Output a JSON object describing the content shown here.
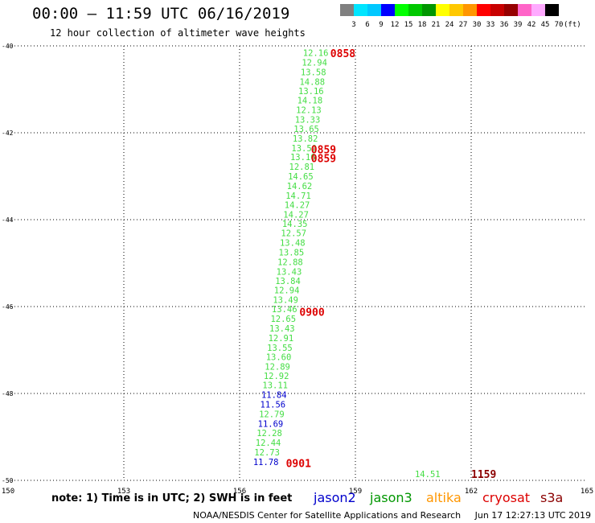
{
  "header": {
    "title": "00:00 – 11:59 UTC 06/16/2019",
    "subtitle": "12 hour collection of altimeter wave heights"
  },
  "legend": {
    "values": [
      "3",
      "6",
      "9",
      "12",
      "15",
      "18",
      "21",
      "24",
      "27",
      "30",
      "33",
      "36",
      "39",
      "42",
      "45",
      "70"
    ],
    "colors": [
      "#808080",
      "#00e5ff",
      "#00c8ff",
      "#0000ff",
      "#00ff00",
      "#00c800",
      "#009600",
      "#ffff00",
      "#ffc800",
      "#ff9600",
      "#ff0000",
      "#c80000",
      "#960000",
      "#ff64c8",
      "#ffaaff",
      "#000000"
    ],
    "unit": "(ft)"
  },
  "footer": {
    "note": "note:  1) Time is in UTC;  2) SWH is in feet",
    "satellites": [
      {
        "name": "jason2",
        "color": "#0000cc"
      },
      {
        "name": "jason3",
        "color": "#009600"
      },
      {
        "name": "altika",
        "color": "#ff9600"
      },
      {
        "name": "cryosat",
        "color": "#dd0000"
      },
      {
        "name": "s3a",
        "color": "#8b0000"
      }
    ],
    "credit": "NOAA/NESDIS Center for Satellite Applications and Research     Jun 17 12:27:13 UTC 2019"
  },
  "chart_data": {
    "type": "scatter",
    "xlim": [
      150,
      165
    ],
    "ylim": [
      -50,
      -40
    ],
    "x_ticks": [
      "150",
      "153",
      "156",
      "159",
      "162",
      "165"
    ],
    "y_ticks": [
      "-40",
      "-42",
      "-44",
      "-46",
      "-48",
      "-50"
    ],
    "grid": true,
    "points": [
      {
        "x": 158.3,
        "y": -40.16,
        "label": "12.16",
        "color": "#44dd44"
      },
      {
        "x": 158.27,
        "y": -40.38,
        "label": "12.94",
        "color": "#44dd44"
      },
      {
        "x": 158.24,
        "y": -40.6,
        "label": "13.58",
        "color": "#44dd44"
      },
      {
        "x": 158.21,
        "y": -40.82,
        "label": "14.88",
        "color": "#44dd44"
      },
      {
        "x": 158.18,
        "y": -41.04,
        "label": "13.16",
        "color": "#44dd44"
      },
      {
        "x": 158.15,
        "y": -41.25,
        "label": "14.18",
        "color": "#44dd44"
      },
      {
        "x": 158.12,
        "y": -41.47,
        "label": "12.13",
        "color": "#44dd44"
      },
      {
        "x": 158.09,
        "y": -41.69,
        "label": "13.33",
        "color": "#44dd44"
      },
      {
        "x": 158.06,
        "y": -41.91,
        "label": "13.65",
        "color": "#44dd44"
      },
      {
        "x": 158.03,
        "y": -42.13,
        "label": "13.82",
        "color": "#44dd44"
      },
      {
        "x": 158.0,
        "y": -42.35,
        "label": "13.50",
        "color": "#44dd44"
      },
      {
        "x": 157.97,
        "y": -42.56,
        "label": "13.16",
        "color": "#44dd44"
      },
      {
        "x": 157.94,
        "y": -42.78,
        "label": "12.81",
        "color": "#44dd44"
      },
      {
        "x": 157.91,
        "y": -43.0,
        "label": "14.65",
        "color": "#44dd44"
      },
      {
        "x": 157.88,
        "y": -43.22,
        "label": "14.62",
        "color": "#44dd44"
      },
      {
        "x": 157.85,
        "y": -43.44,
        "label": "14.71",
        "color": "#44dd44"
      },
      {
        "x": 157.82,
        "y": -43.66,
        "label": "14.27",
        "color": "#44dd44"
      },
      {
        "x": 157.79,
        "y": -43.88,
        "label": "14.27",
        "color": "#44dd44"
      },
      {
        "x": 157.76,
        "y": -44.09,
        "label": "14.35",
        "color": "#44dd44"
      },
      {
        "x": 157.73,
        "y": -44.31,
        "label": "12.57",
        "color": "#44dd44"
      },
      {
        "x": 157.7,
        "y": -44.53,
        "label": "13.48",
        "color": "#44dd44"
      },
      {
        "x": 157.67,
        "y": -44.75,
        "label": "13.85",
        "color": "#44dd44"
      },
      {
        "x": 157.64,
        "y": -44.97,
        "label": "12.88",
        "color": "#44dd44"
      },
      {
        "x": 157.61,
        "y": -45.19,
        "label": "13.43",
        "color": "#44dd44"
      },
      {
        "x": 157.58,
        "y": -45.41,
        "label": "13.84",
        "color": "#44dd44"
      },
      {
        "x": 157.55,
        "y": -45.62,
        "label": "12.94",
        "color": "#44dd44"
      },
      {
        "x": 157.52,
        "y": -45.84,
        "label": "13.49",
        "color": "#44dd44"
      },
      {
        "x": 157.49,
        "y": -46.06,
        "label": "13.46",
        "color": "#44dd44"
      },
      {
        "x": 157.46,
        "y": -46.28,
        "label": "12.65",
        "color": "#44dd44"
      },
      {
        "x": 157.43,
        "y": -46.5,
        "label": "13.43",
        "color": "#44dd44"
      },
      {
        "x": 157.4,
        "y": -46.72,
        "label": "12.91",
        "color": "#44dd44"
      },
      {
        "x": 157.37,
        "y": -46.94,
        "label": "13.55",
        "color": "#44dd44"
      },
      {
        "x": 157.34,
        "y": -47.16,
        "label": "13.60",
        "color": "#44dd44"
      },
      {
        "x": 157.31,
        "y": -47.38,
        "label": "12.89",
        "color": "#44dd44"
      },
      {
        "x": 157.28,
        "y": -47.59,
        "label": "12.92",
        "color": "#44dd44"
      },
      {
        "x": 157.25,
        "y": -47.81,
        "label": "13.11",
        "color": "#44dd44"
      },
      {
        "x": 157.22,
        "y": -48.03,
        "label": "11.84",
        "color": "#0000cc"
      },
      {
        "x": 157.19,
        "y": -48.25,
        "label": "11.56",
        "color": "#0000cc"
      },
      {
        "x": 157.16,
        "y": -48.47,
        "label": "12.79",
        "color": "#44dd44"
      },
      {
        "x": 157.13,
        "y": -48.69,
        "label": "11.69",
        "color": "#0000cc"
      },
      {
        "x": 157.1,
        "y": -48.91,
        "label": "12.28",
        "color": "#44dd44"
      },
      {
        "x": 157.07,
        "y": -49.13,
        "label": "12.44",
        "color": "#44dd44"
      },
      {
        "x": 157.04,
        "y": -49.35,
        "label": "12.73",
        "color": "#44dd44"
      },
      {
        "x": 157.01,
        "y": -49.57,
        "label": "11.78",
        "color": "#0000cc"
      },
      {
        "x": 161.2,
        "y": -49.85,
        "label": "14.51",
        "color": "#44dd44"
      }
    ],
    "time_labels": [
      {
        "x": 158.35,
        "y": -40.17,
        "label": "0858",
        "color": "#dd0000"
      },
      {
        "x": 157.85,
        "y": -42.38,
        "label": "0859",
        "color": "#dd0000"
      },
      {
        "x": 157.85,
        "y": -42.58,
        "label": "0859",
        "color": "#dd0000"
      },
      {
        "x": 157.55,
        "y": -46.12,
        "label": "0900",
        "color": "#dd0000"
      },
      {
        "x": 157.2,
        "y": -49.6,
        "label": "0901",
        "color": "#dd0000"
      },
      {
        "x": 162.0,
        "y": -49.85,
        "label": "1159",
        "color": "#8b0000"
      }
    ]
  }
}
